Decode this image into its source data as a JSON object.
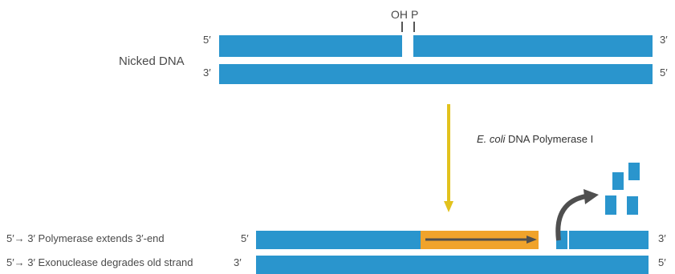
{
  "top": {
    "label": "Nicked DNA",
    "oh_label": "OH",
    "p_label": "P",
    "strand1_left_end": "5′",
    "strand1_right_end": "3′",
    "strand2_left_end": "3′",
    "strand2_right_end": "5′"
  },
  "enzyme": {
    "name_italic": "E. coli",
    "name_rest": " DNA Polymerase I"
  },
  "bottom": {
    "row1_label": "5′→ 3′ Polymerase extends 3′-end",
    "row2_label": "5′→ 3′ Exonuclease degrades old strand",
    "strand1_left_end": "5′",
    "strand1_right_end": "3′",
    "strand2_left_end": "3′",
    "strand2_right_end": "5′"
  },
  "colors": {
    "dna_strand": "#2a95cd",
    "new_synthesis": "#f0a32b",
    "process_arrow": "#e2c21d",
    "extension_arrow": "#4f4f4f"
  }
}
